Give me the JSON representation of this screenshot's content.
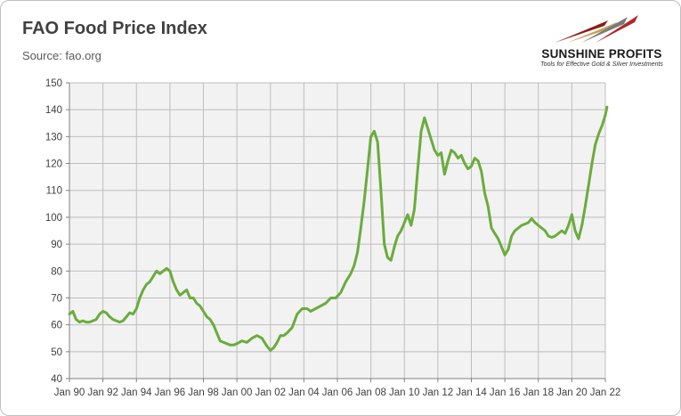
{
  "header": {
    "title": "FAO Food Price Index",
    "source": "Source: fao.org"
  },
  "logo": {
    "brand": "SUNSHINE PROFITS",
    "tagline": "Tools for Effective Gold & Silver Investments"
  },
  "colors": {
    "line": "#6aac3c",
    "plot_bg": "#f2f2f2",
    "grid": "#bdbdbd",
    "axis": "#808080"
  },
  "chart_data": {
    "type": "line",
    "title": "FAO Food Price Index",
    "subtitle": "Source: fao.org",
    "xlabel": "",
    "ylabel": "",
    "xlim": [
      1990.0,
      2022.0
    ],
    "ylim": [
      40,
      150
    ],
    "yticks": [
      40,
      50,
      60,
      70,
      80,
      90,
      100,
      110,
      120,
      130,
      140,
      150
    ],
    "xticks": [
      {
        "x": 1990,
        "label": "Jan 90"
      },
      {
        "x": 1992,
        "label": "Jan 92"
      },
      {
        "x": 1994,
        "label": "Jan 94"
      },
      {
        "x": 1996,
        "label": "Jan 96"
      },
      {
        "x": 1998,
        "label": "Jan 98"
      },
      {
        "x": 2000,
        "label": "Jan 00"
      },
      {
        "x": 2002,
        "label": "Jan 02"
      },
      {
        "x": 2004,
        "label": "Jan 04"
      },
      {
        "x": 2006,
        "label": "Jan 06"
      },
      {
        "x": 2008,
        "label": "Jan 08"
      },
      {
        "x": 2010,
        "label": "Jan 10"
      },
      {
        "x": 2012,
        "label": "Jan 12"
      },
      {
        "x": 2014,
        "label": "Jan 14"
      },
      {
        "x": 2016,
        "label": "Jan 16"
      },
      {
        "x": 2018,
        "label": "Jan 18"
      },
      {
        "x": 2020,
        "label": "Jan 20"
      },
      {
        "x": 2022,
        "label": "Jan 22"
      }
    ],
    "grid": true,
    "series": [
      {
        "name": "FAO Food Price Index",
        "x": [
          1990.0,
          1990.2,
          1990.4,
          1990.6,
          1990.8,
          1991.0,
          1991.2,
          1991.4,
          1991.6,
          1991.8,
          1992.0,
          1992.2,
          1992.4,
          1992.6,
          1992.8,
          1993.0,
          1993.2,
          1993.4,
          1993.6,
          1993.8,
          1994.0,
          1994.2,
          1994.4,
          1994.6,
          1994.8,
          1995.0,
          1995.2,
          1995.4,
          1995.6,
          1995.8,
          1996.0,
          1996.2,
          1996.4,
          1996.6,
          1996.8,
          1997.0,
          1997.2,
          1997.4,
          1997.6,
          1997.8,
          1998.0,
          1998.2,
          1998.4,
          1998.6,
          1998.8,
          1999.0,
          1999.2,
          1999.4,
          1999.6,
          1999.8,
          2000.0,
          2000.3,
          2000.6,
          2000.9,
          2001.2,
          2001.5,
          2001.8,
          2002.0,
          2002.2,
          2002.4,
          2002.6,
          2002.8,
          2003.0,
          2003.3,
          2003.6,
          2003.9,
          2004.2,
          2004.4,
          2004.7,
          2005.0,
          2005.3,
          2005.6,
          2005.9,
          2006.2,
          2006.5,
          2006.8,
          2007.0,
          2007.2,
          2007.4,
          2007.6,
          2007.8,
          2008.0,
          2008.2,
          2008.4,
          2008.6,
          2008.8,
          2009.0,
          2009.2,
          2009.4,
          2009.6,
          2009.8,
          2010.0,
          2010.2,
          2010.4,
          2010.6,
          2010.8,
          2011.0,
          2011.2,
          2011.4,
          2011.6,
          2011.8,
          2012.0,
          2012.2,
          2012.4,
          2012.6,
          2012.8,
          2013.0,
          2013.2,
          2013.4,
          2013.6,
          2013.8,
          2014.0,
          2014.2,
          2014.4,
          2014.6,
          2014.8,
          2015.0,
          2015.2,
          2015.4,
          2015.6,
          2015.8,
          2016.0,
          2016.2,
          2016.4,
          2016.6,
          2016.8,
          2017.0,
          2017.2,
          2017.4,
          2017.6,
          2017.8,
          2018.0,
          2018.2,
          2018.4,
          2018.6,
          2018.8,
          2019.0,
          2019.2,
          2019.4,
          2019.6,
          2019.8,
          2020.0,
          2020.2,
          2020.4,
          2020.6,
          2020.8,
          2021.0,
          2021.2,
          2021.4,
          2021.6,
          2021.8,
          2022.0,
          2022.1
        ],
        "values": [
          64,
          65,
          62,
          61,
          61.5,
          61,
          61,
          61.5,
          62,
          64,
          65,
          64.5,
          63,
          62,
          61.5,
          61,
          61.5,
          63,
          64.5,
          64,
          66,
          70,
          73,
          75,
          76,
          78,
          80,
          79,
          80,
          81,
          80,
          76,
          73,
          71,
          72,
          73,
          70,
          70,
          68,
          67,
          65,
          63,
          62,
          60,
          57,
          54,
          53.5,
          53,
          52.5,
          52.5,
          53,
          54,
          53.5,
          55,
          56,
          55,
          52,
          50.5,
          51.5,
          53.5,
          56,
          56,
          57,
          59,
          64,
          66,
          66,
          65,
          66,
          67,
          68,
          70,
          70,
          72,
          76,
          79,
          82,
          87,
          96,
          106,
          118,
          130,
          132,
          128,
          110,
          90,
          85,
          84,
          89,
          93,
          95,
          98,
          101,
          97,
          103,
          118,
          132,
          137,
          133,
          129,
          125,
          123,
          124,
          116,
          121,
          125,
          124,
          122,
          123,
          120,
          118,
          119,
          122,
          121,
          117,
          109,
          104,
          96,
          94,
          92,
          89,
          86,
          88,
          93,
          95,
          96,
          97,
          97.5,
          98,
          99.5,
          98,
          97,
          96,
          95,
          93,
          92.5,
          93,
          94,
          95,
          94,
          97,
          101,
          95,
          92,
          97,
          104,
          112,
          120,
          127,
          131,
          134,
          138,
          141
        ]
      }
    ]
  }
}
